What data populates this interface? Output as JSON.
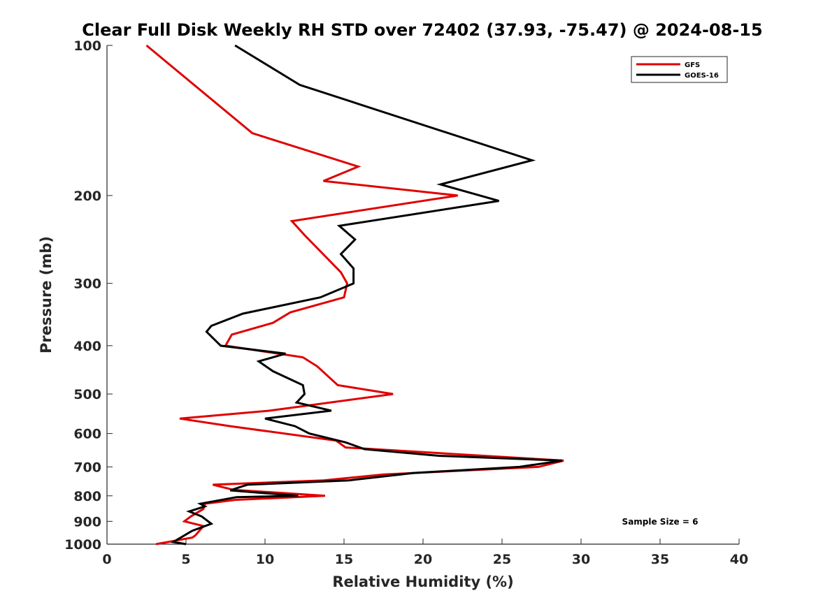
{
  "chart_data": {
    "type": "line",
    "title": "Clear Full Disk Weekly RH STD over 72402 (37.93, -75.47) @ 2024-08-15",
    "xlabel": "Relative Humidity (%)",
    "ylabel": "Pressure (mb)",
    "xlim": [
      0,
      40
    ],
    "ylim": [
      1000,
      100
    ],
    "yscale": "log",
    "x_ticks": [
      0,
      5,
      10,
      15,
      20,
      25,
      30,
      35,
      40
    ],
    "y_ticks": [
      100,
      200,
      300,
      400,
      500,
      600,
      700,
      800,
      900,
      1000
    ],
    "grid": false,
    "legend_position": "top-right",
    "annotation": "Sample Size = 6",
    "series": [
      {
        "name": "GFS",
        "color": "#e00000",
        "points": [
          [
            2.5,
            100
          ],
          [
            9.2,
            150
          ],
          [
            15.9,
            175
          ],
          [
            13.7,
            187
          ],
          [
            22.2,
            200
          ],
          [
            11.7,
            225
          ],
          [
            12.5,
            240
          ],
          [
            14.8,
            285
          ],
          [
            15.2,
            300
          ],
          [
            15.0,
            320
          ],
          [
            11.6,
            343
          ],
          [
            10.5,
            360
          ],
          [
            7.9,
            380
          ],
          [
            7.5,
            400
          ],
          [
            12.4,
            422
          ],
          [
            13.3,
            440
          ],
          [
            14.6,
            480
          ],
          [
            18.1,
            500
          ],
          [
            10.3,
            540
          ],
          [
            4.6,
            560
          ],
          [
            7.8,
            580
          ],
          [
            14.5,
            620
          ],
          [
            15.1,
            640
          ],
          [
            28.9,
            680
          ],
          [
            27.3,
            700
          ],
          [
            17.5,
            725
          ],
          [
            13.7,
            745
          ],
          [
            6.7,
            760
          ],
          [
            8.0,
            778
          ],
          [
            13.8,
            800
          ],
          [
            8.1,
            815
          ],
          [
            6.2,
            830
          ],
          [
            6.1,
            850
          ],
          [
            5.3,
            880
          ],
          [
            4.9,
            900
          ],
          [
            6.1,
            920
          ],
          [
            5.6,
            960
          ],
          [
            5.4,
            970
          ],
          [
            3.1,
            1000
          ]
        ]
      },
      {
        "name": "GOES-16",
        "color": "#000000",
        "points": [
          [
            8.1,
            100
          ],
          [
            12.2,
            120
          ],
          [
            26.9,
            170
          ],
          [
            21.1,
            190
          ],
          [
            24.8,
            205
          ],
          [
            14.7,
            230
          ],
          [
            15.7,
            245
          ],
          [
            14.8,
            262
          ],
          [
            15.6,
            280
          ],
          [
            15.6,
            300
          ],
          [
            13.5,
            320
          ],
          [
            8.6,
            345
          ],
          [
            6.6,
            365
          ],
          [
            6.3,
            375
          ],
          [
            7.2,
            400
          ],
          [
            11.3,
            415
          ],
          [
            9.6,
            430
          ],
          [
            10.5,
            450
          ],
          [
            12.4,
            480
          ],
          [
            12.5,
            500
          ],
          [
            12.0,
            520
          ],
          [
            14.2,
            540
          ],
          [
            10.0,
            560
          ],
          [
            11.9,
            580
          ],
          [
            12.8,
            600
          ],
          [
            15.1,
            625
          ],
          [
            16.3,
            645
          ],
          [
            21.0,
            665
          ],
          [
            28.8,
            680
          ],
          [
            26.1,
            700
          ],
          [
            19.4,
            720
          ],
          [
            15.3,
            745
          ],
          [
            8.9,
            760
          ],
          [
            8.6,
            765
          ],
          [
            7.8,
            780
          ],
          [
            12.1,
            800
          ],
          [
            8.2,
            805
          ],
          [
            5.9,
            830
          ],
          [
            6.2,
            840
          ],
          [
            5.2,
            860
          ],
          [
            6.0,
            880
          ],
          [
            6.6,
            910
          ],
          [
            5.4,
            940
          ],
          [
            4.2,
            990
          ],
          [
            5.0,
            1000
          ]
        ]
      }
    ]
  }
}
